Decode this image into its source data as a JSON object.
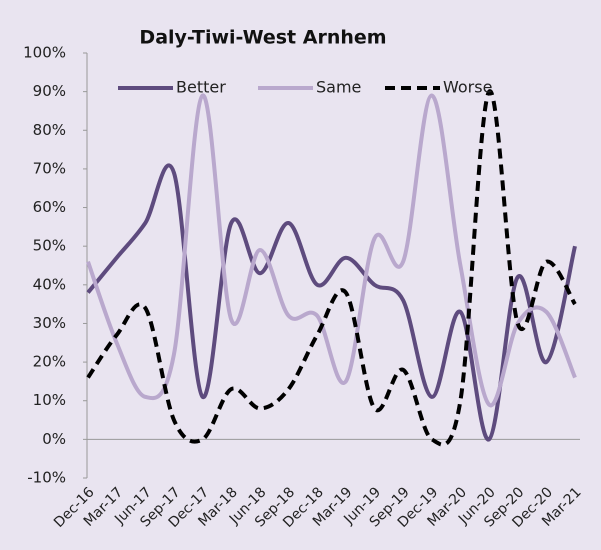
{
  "chart_data": {
    "type": "line",
    "title": "Daly-Tiwi-West Arnhem",
    "categories": [
      "Dec-16",
      "Mar-17",
      "Jun-17",
      "Sep-17",
      "Dec-17",
      "Mar-18",
      "Jun-18",
      "Sep-18",
      "Dec-18",
      "Mar-19",
      "Jun-19",
      "Sep-19",
      "Dec-19",
      "Mar-20",
      "Jun-20",
      "Sep-20",
      "Dec-20",
      "Mar-21"
    ],
    "series": [
      {
        "name": "Better",
        "color": "#5e4b7e",
        "dash": false,
        "values": [
          38,
          47,
          56,
          69,
          11,
          56,
          43,
          56,
          40,
          47,
          40,
          36,
          11,
          33,
          0,
          42,
          20,
          50
        ]
      },
      {
        "name": "Same",
        "color": "#b9a8cd",
        "dash": false,
        "values": [
          46,
          25,
          11,
          22,
          89,
          31,
          49,
          32,
          32,
          15,
          52,
          46,
          89,
          45,
          9,
          30,
          33,
          16
        ]
      },
      {
        "name": "Worse",
        "color": "#000000",
        "dash": true,
        "values": [
          16,
          27,
          34,
          5,
          0,
          13,
          8,
          13,
          27,
          38,
          8,
          18,
          0,
          10,
          90,
          30,
          46,
          35
        ]
      }
    ],
    "ylim": [
      -10,
      100
    ],
    "yticks": [
      {
        "value": -10,
        "label": "-10%"
      },
      {
        "value": 0,
        "label": "0%"
      },
      {
        "value": 10,
        "label": "10%"
      },
      {
        "value": 20,
        "label": "20%"
      },
      {
        "value": 30,
        "label": "30%"
      },
      {
        "value": 40,
        "label": "40%"
      },
      {
        "value": 50,
        "label": "50%"
      },
      {
        "value": 60,
        "label": "60%"
      },
      {
        "value": 70,
        "label": "70%"
      },
      {
        "value": 80,
        "label": "80%"
      },
      {
        "value": 90,
        "label": "90%"
      },
      {
        "value": 100,
        "label": "100%"
      }
    ],
    "legend": "top",
    "grid": false
  }
}
